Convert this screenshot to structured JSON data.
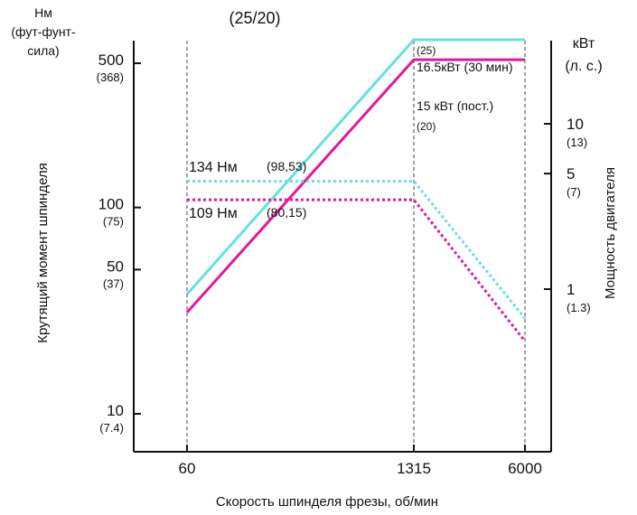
{
  "chart_data": {
    "type": "line",
    "title_top": "(25/20)",
    "x_axis": {
      "label": "Скорость шпинделя фрезы, об/мин",
      "ticks": [
        {
          "value": 60,
          "label": "60"
        },
        {
          "value": 1315,
          "label": "1315"
        },
        {
          "value": 6000,
          "label": "6000"
        }
      ],
      "breakpoints": [
        60,
        1315,
        6000
      ]
    },
    "y_left": {
      "label": "Крутящий момент шпинделя",
      "unit_line1": "Нм",
      "unit_line2": "(фут-фунт-",
      "unit_line3": "сила)",
      "scale": "log",
      "ticks": [
        {
          "value": 500,
          "label": "500",
          "sub": "(368)"
        },
        {
          "value": 100,
          "label": "100",
          "sub": "(75)"
        },
        {
          "value": 50,
          "label": "50",
          "sub": "(37)"
        },
        {
          "value": 10,
          "label": "10",
          "sub": "(7.4)"
        }
      ]
    },
    "y_right": {
      "label": "Мощность двигателя",
      "unit_line1": "кВт",
      "unit_line2": "(л. с.)",
      "scale": "log",
      "ticks": [
        {
          "value": 10,
          "label": "10",
          "sub": "(13)"
        },
        {
          "value": 5,
          "label": "5",
          "sub": "(7)"
        },
        {
          "value": 1,
          "label": "1",
          "sub": "(1.3)"
        }
      ]
    },
    "series": [
      {
        "name": "16.5кВт (30 мин)",
        "kind": "power",
        "style": "solid",
        "color": "#66e0e0",
        "points": [
          [
            60,
            38
          ],
          [
            1315,
            650
          ],
          [
            6000,
            650
          ]
        ]
      },
      {
        "name": "15 кВт (пост.)",
        "kind": "power",
        "style": "solid",
        "color": "#e0189a",
        "points": [
          [
            60,
            31
          ],
          [
            1315,
            520
          ],
          [
            6000,
            520
          ]
        ]
      },
      {
        "name": "134 Нм",
        "kind": "torque",
        "style": "dashed",
        "color": "#66e0e0",
        "points": [
          [
            60,
            134
          ],
          [
            1315,
            134
          ],
          [
            6000,
            29
          ]
        ]
      },
      {
        "name": "109 Нм",
        "kind": "torque",
        "style": "dashed",
        "color": "#e0189a",
        "points": [
          [
            60,
            109
          ],
          [
            1315,
            109
          ],
          [
            6000,
            22.5
          ]
        ]
      }
    ],
    "annotations": {
      "a134": {
        "main": "134 Нм",
        "sub": "(98,53)"
      },
      "a109": {
        "main": "109 Нм",
        "sub": "(80,15)"
      },
      "a25": "(25)",
      "a165": "16.5кВт (30 мин)",
      "a15": "15 кВт (пост.)",
      "a20": "(20)"
    }
  }
}
